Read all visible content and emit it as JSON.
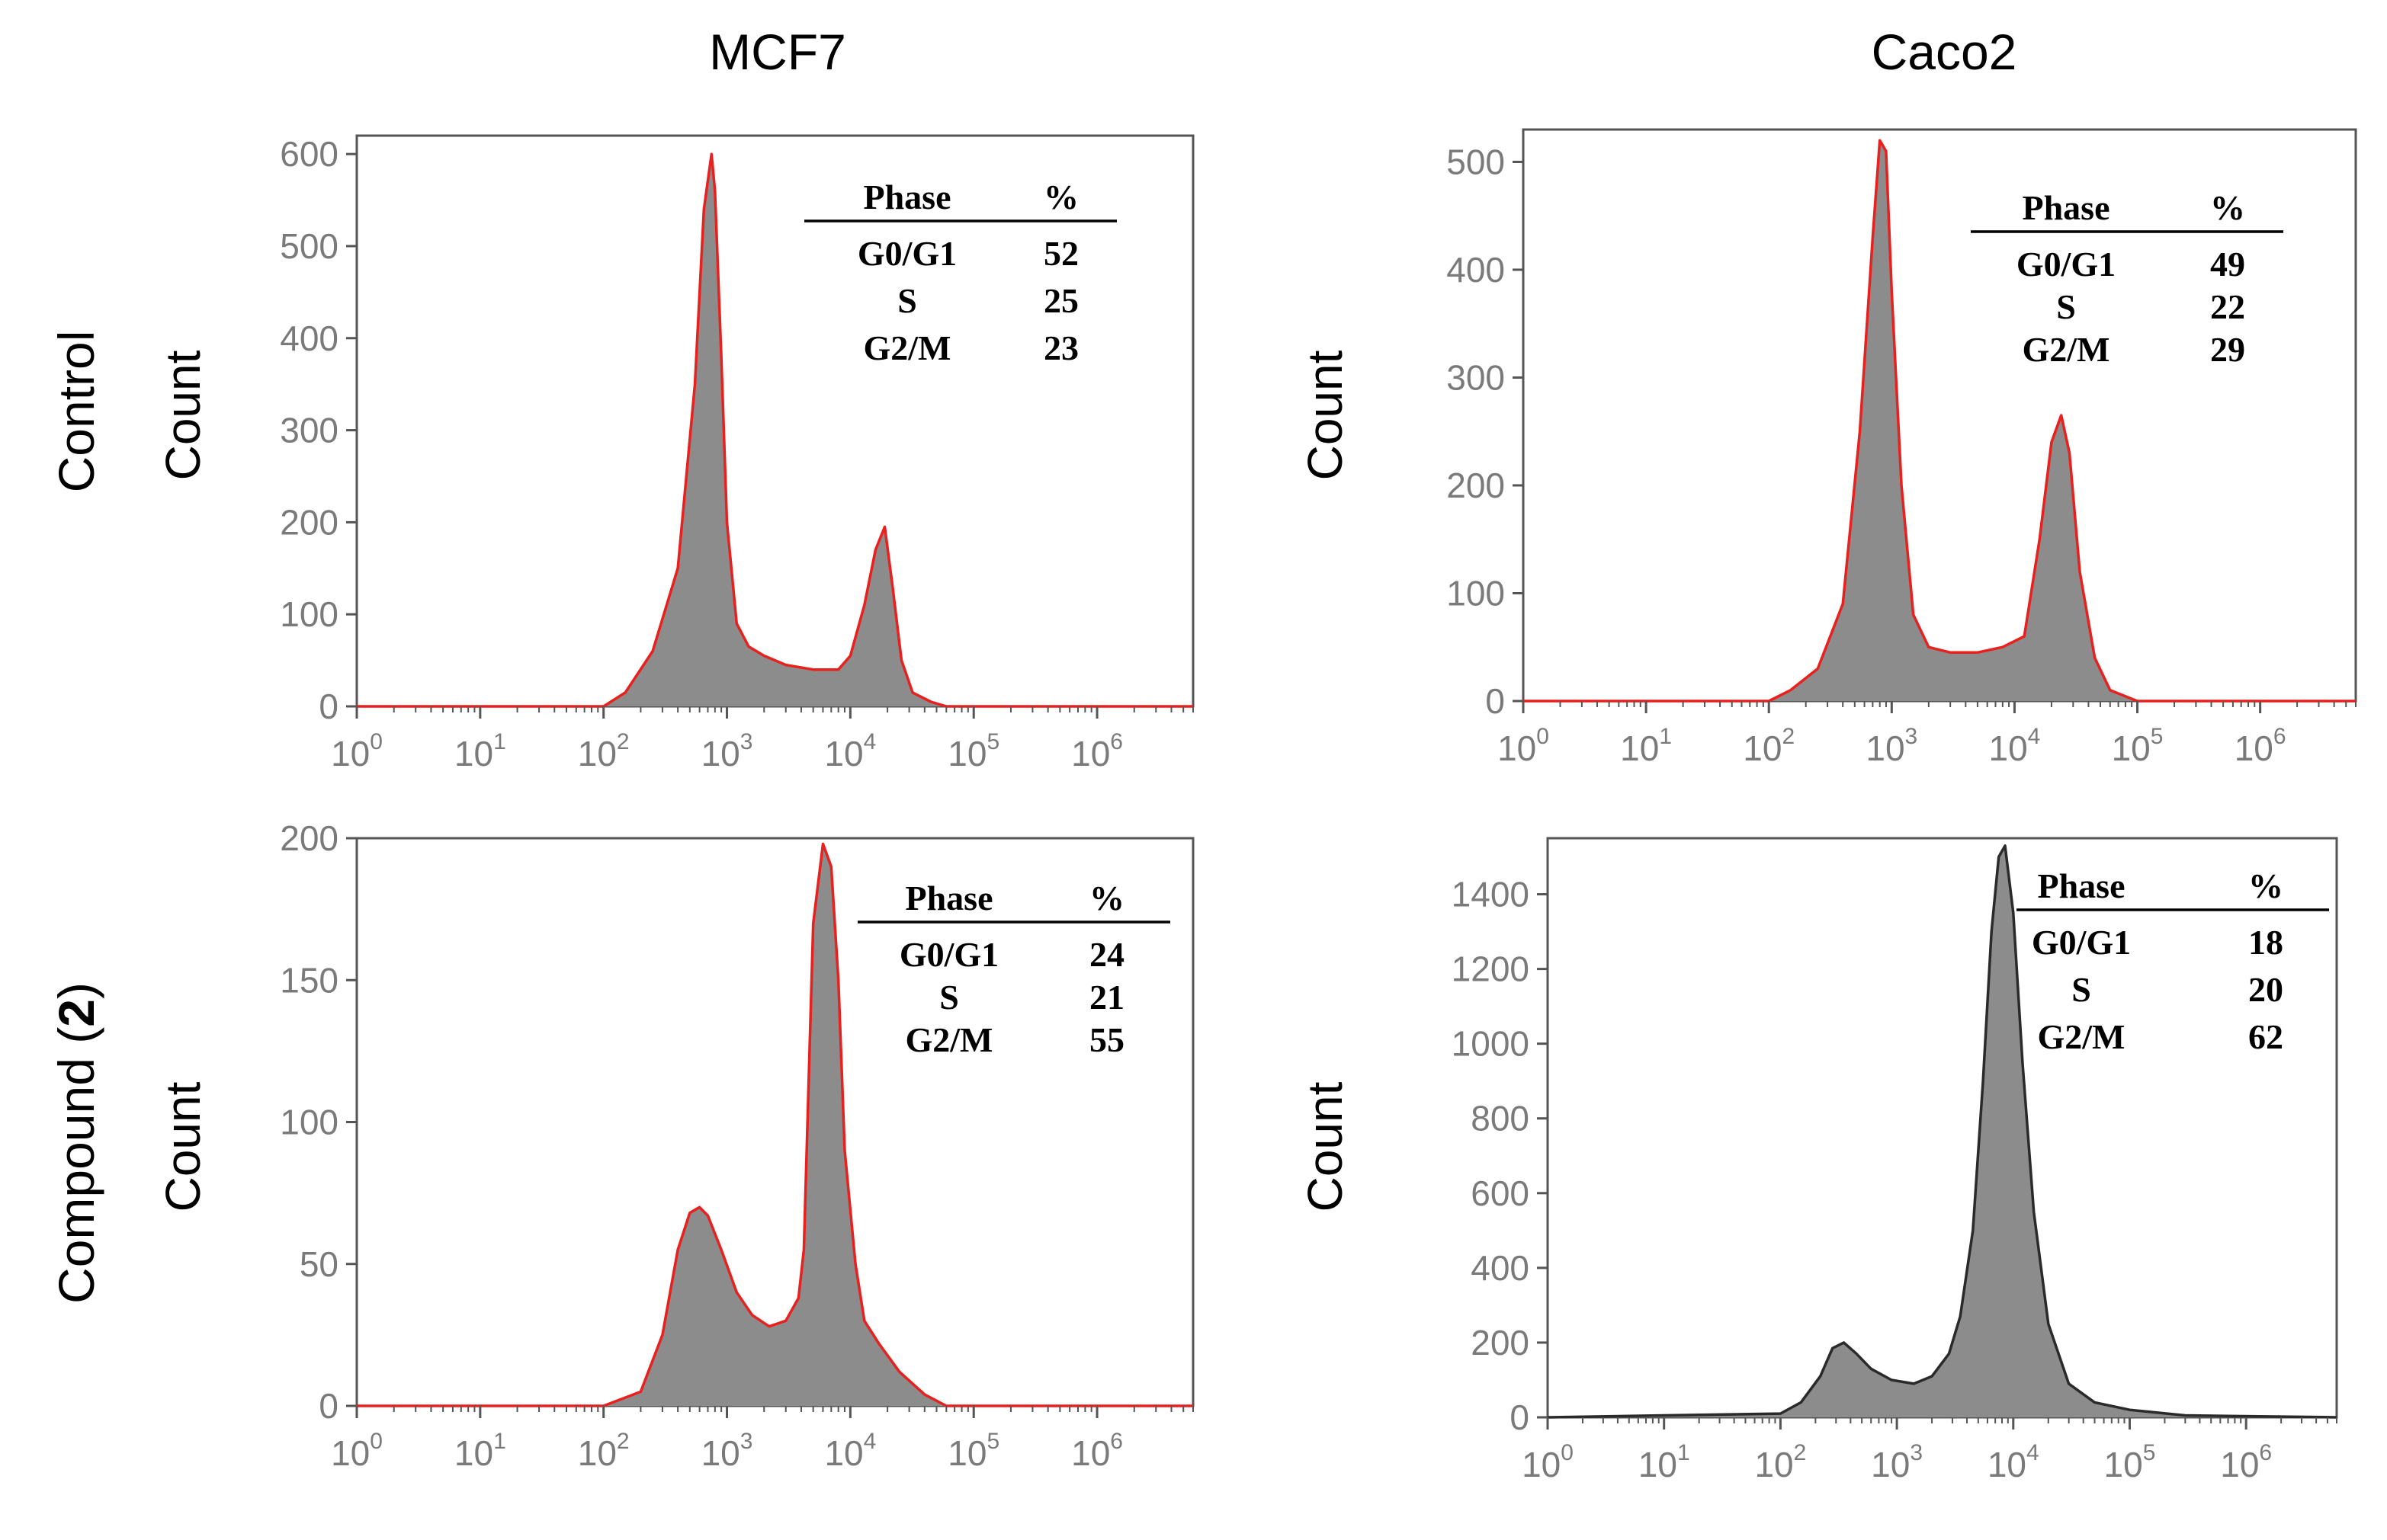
{
  "figure": {
    "column_titles": [
      "MCF7",
      "Caco2"
    ],
    "row_labels": {
      "control": "Control",
      "compound_prefix": "Compound (",
      "compound_number": "2",
      "compound_suffix": ")"
    },
    "table_headers": {
      "phase": "Phase",
      "percent": "%"
    },
    "colors": {
      "fill": "#8c8c8c",
      "outline_red": "#e8201e",
      "outline_dark": "#2a2a2a",
      "tick_text": "#7a7a7a",
      "axis": "#555555"
    }
  },
  "chart_data": [
    {
      "id": "mcf7-control",
      "type": "area",
      "title": "MCF7",
      "row": "Control",
      "xlabel": "",
      "ylabel": "Count",
      "xscale": "log10",
      "xlim": [
        1,
        6000000
      ],
      "xtick_exponents": [
        0,
        1,
        2,
        3,
        4,
        5,
        6
      ],
      "ylim": [
        0,
        620
      ],
      "yticks": [
        0,
        100,
        200,
        300,
        400,
        500,
        600
      ],
      "outline": "red",
      "x": [
        1,
        100,
        150,
        250,
        400,
        550,
        650,
        750,
        800,
        900,
        1000,
        1200,
        1500,
        2000,
        3000,
        5000,
        8000,
        10000,
        13000,
        16000,
        19000,
        22000,
        26000,
        32000,
        45000,
        60000,
        100000,
        6000000
      ],
      "y": [
        0,
        0,
        15,
        60,
        150,
        350,
        540,
        600,
        560,
        380,
        200,
        90,
        65,
        55,
        45,
        40,
        40,
        55,
        110,
        170,
        195,
        130,
        50,
        15,
        5,
        0,
        0,
        0
      ],
      "phase_table": [
        {
          "phase": "G0/G1",
          "percent": "52"
        },
        {
          "phase": "S",
          "percent": "25"
        },
        {
          "phase": "G2/M",
          "percent": "23"
        }
      ]
    },
    {
      "id": "caco2-control",
      "type": "area",
      "title": "Caco2",
      "row": "Control",
      "xlabel": "",
      "ylabel": "Count",
      "xscale": "log10",
      "xlim": [
        1,
        6000000
      ],
      "xtick_exponents": [
        0,
        1,
        2,
        3,
        4,
        5,
        6
      ],
      "ylim": [
        0,
        530
      ],
      "yticks": [
        0,
        100,
        200,
        300,
        400,
        500
      ],
      "outline": "red",
      "x": [
        1,
        100,
        150,
        250,
        400,
        550,
        700,
        800,
        900,
        1000,
        1200,
        1500,
        2000,
        3000,
        5000,
        8000,
        12000,
        16000,
        20000,
        24000,
        28000,
        34000,
        45000,
        60000,
        100000,
        6000000
      ],
      "y": [
        0,
        0,
        10,
        30,
        90,
        250,
        430,
        520,
        510,
        380,
        200,
        80,
        50,
        45,
        45,
        50,
        60,
        150,
        240,
        265,
        230,
        120,
        40,
        10,
        0,
        0
      ],
      "phase_table": [
        {
          "phase": "G0/G1",
          "percent": "49"
        },
        {
          "phase": "S",
          "percent": "22"
        },
        {
          "phase": "G2/M",
          "percent": "29"
        }
      ]
    },
    {
      "id": "mcf7-compound2",
      "type": "area",
      "title": "MCF7",
      "row": "Compound (2)",
      "xlabel": "",
      "ylabel": "Count",
      "xscale": "log10",
      "xlim": [
        1,
        6000000
      ],
      "xtick_exponents": [
        0,
        1,
        2,
        3,
        4,
        5,
        6
      ],
      "ylim": [
        0,
        200
      ],
      "yticks": [
        0,
        50,
        100,
        150,
        200
      ],
      "outline": "red",
      "x": [
        1,
        100,
        200,
        300,
        400,
        500,
        600,
        700,
        900,
        1200,
        1600,
        2200,
        3000,
        3800,
        4200,
        4500,
        5000,
        6000,
        7000,
        8000,
        9000,
        11000,
        13000,
        17000,
        25000,
        40000,
        60000,
        100000,
        6000000
      ],
      "y": [
        0,
        0,
        5,
        25,
        55,
        68,
        70,
        67,
        55,
        40,
        32,
        28,
        30,
        38,
        55,
        100,
        170,
        198,
        190,
        150,
        90,
        50,
        30,
        22,
        12,
        4,
        0,
        0,
        0
      ],
      "phase_table": [
        {
          "phase": "G0/G1",
          "percent": "24"
        },
        {
          "phase": "S",
          "percent": "21"
        },
        {
          "phase": "G2/M",
          "percent": "55"
        }
      ]
    },
    {
      "id": "caco2-compound2",
      "type": "area",
      "title": "Caco2",
      "row": "Compound (2)",
      "xlabel": "",
      "ylabel": "Count",
      "xscale": "log10",
      "xlim": [
        1,
        6000000
      ],
      "xtick_exponents": [
        0,
        1,
        2,
        3,
        4,
        5,
        6
      ],
      "ylim": [
        0,
        1550
      ],
      "yticks": [
        0,
        200,
        400,
        600,
        800,
        1000,
        1200,
        1400
      ],
      "outline": "dark",
      "x": [
        1,
        100,
        150,
        220,
        280,
        350,
        450,
        600,
        900,
        1400,
        2000,
        2800,
        3500,
        4500,
        5500,
        6500,
        7500,
        8500,
        10000,
        12000,
        15000,
        20000,
        30000,
        50000,
        100000,
        300000,
        6000000
      ],
      "y": [
        0,
        10,
        40,
        110,
        185,
        200,
        170,
        130,
        100,
        90,
        110,
        170,
        270,
        500,
        900,
        1300,
        1500,
        1530,
        1350,
        950,
        550,
        250,
        90,
        40,
        20,
        5,
        0
      ],
      "phase_table": [
        {
          "phase": "G0/G1",
          "percent": "18"
        },
        {
          "phase": "S",
          "percent": "20"
        },
        {
          "phase": "G2/M",
          "percent": "62"
        }
      ]
    }
  ]
}
